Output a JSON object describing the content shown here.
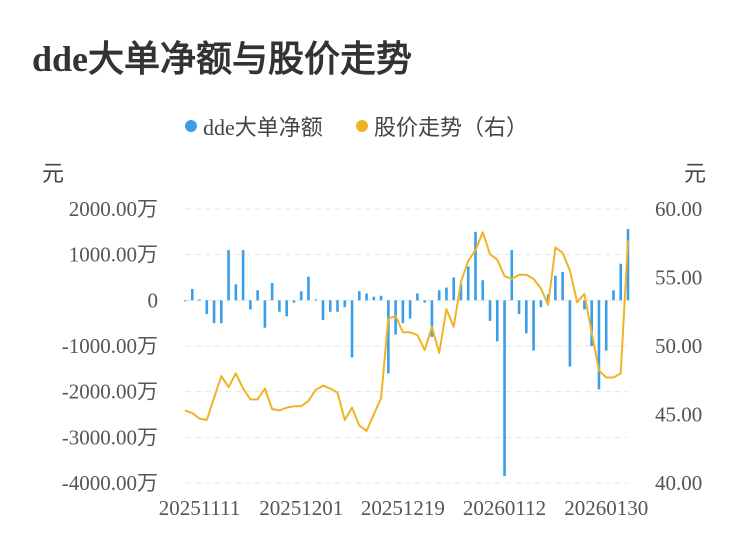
{
  "title": "dde大单净额与股价走势",
  "legend": [
    {
      "label": "dde大单净额",
      "color": "#3a9ee8"
    },
    {
      "label": "股价走势（右）",
      "color": "#f0b323"
    }
  ],
  "left_unit": "元",
  "right_unit": "元",
  "chart_data": {
    "type": "bar+line",
    "left_axis": {
      "ticks": [
        "2000.00万",
        "1000.00万",
        "0",
        "-1000.00万",
        "-2000.00万",
        "-3000.00万",
        "-4000.00万"
      ],
      "min": -4000,
      "max": 2000
    },
    "right_axis": {
      "ticks": [
        "60.00",
        "55.00",
        "50.00",
        "45.00",
        "40.00"
      ],
      "min": 40,
      "max": 60
    },
    "x_tick_labels": [
      "20251111",
      "20251201",
      "20251219",
      "20260112",
      "20260130"
    ],
    "x_tick_index": [
      2,
      16,
      30,
      44,
      58
    ],
    "bars": [
      -20,
      250,
      20,
      -300,
      -500,
      -500,
      1100,
      350,
      1100,
      -200,
      220,
      -600,
      380,
      -250,
      -350,
      -50,
      200,
      520,
      20,
      -430,
      -250,
      -250,
      -150,
      -1250,
      200,
      150,
      80,
      100,
      -1600,
      -750,
      -500,
      -400,
      150,
      -50,
      -800,
      220,
      280,
      500,
      350,
      740,
      1500,
      440,
      -450,
      -900,
      -3850,
      1100,
      -300,
      -720,
      -1100,
      -150,
      130,
      540,
      620,
      -1450,
      -50,
      -200,
      -1000,
      -1950,
      -1100,
      220,
      800,
      1560
    ],
    "price": [
      45.3,
      45.1,
      44.7,
      44.6,
      46.2,
      47.8,
      47.0,
      48.0,
      46.9,
      46.1,
      46.1,
      46.9,
      45.4,
      45.3,
      45.5,
      45.6,
      45.6,
      46.0,
      46.8,
      47.1,
      46.9,
      46.6,
      44.6,
      45.5,
      44.2,
      43.8,
      45.0,
      46.2,
      52.0,
      52.2,
      51.0,
      51.0,
      50.8,
      49.7,
      51.4,
      49.5,
      52.7,
      51.4,
      54.7,
      56.2,
      57.0,
      58.3,
      56.7,
      56.3,
      55.1,
      54.9,
      55.2,
      55.2,
      54.9,
      54.2,
      53.0,
      57.2,
      56.8,
      55.5,
      53.2,
      53.8,
      51.0,
      48.2,
      47.7,
      47.7,
      48.0,
      57.7
    ]
  }
}
